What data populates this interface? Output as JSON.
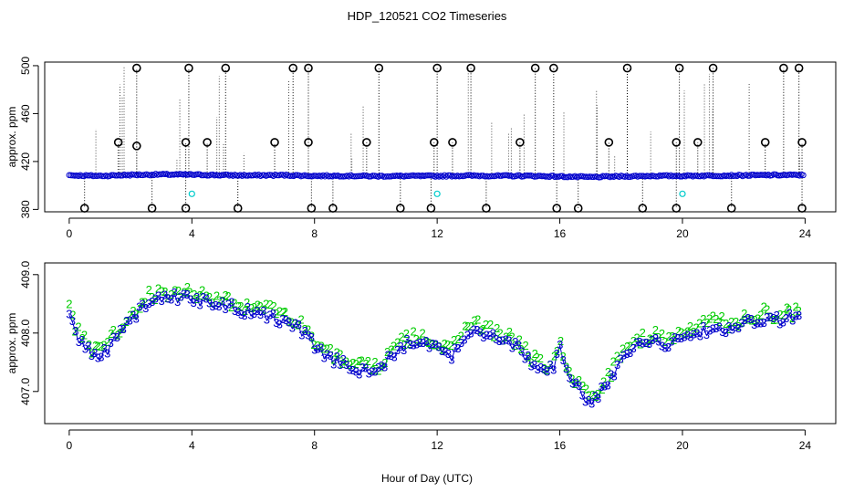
{
  "title": "HDP_120521  CO2 Timeseries",
  "xlabel": "Hour of Day (UTC)",
  "colors": {
    "flagged": "#000000",
    "main": "#0000cc",
    "cyan": "#00cccc",
    "series2": "#00cc00",
    "series3": "#0000cc",
    "axis": "#000000"
  },
  "chart_data": [
    {
      "type": "scatter",
      "ylabel": "approx. ppm",
      "xlim": [
        -0.8,
        25.0
      ],
      "ylim": [
        378,
        503
      ],
      "xticks": [
        0,
        4,
        8,
        12,
        16,
        20,
        24
      ],
      "yticks": [
        380,
        420,
        460,
        500
      ],
      "grid": false,
      "baseline": [
        [
          0,
          408.5
        ],
        [
          1,
          408.0
        ],
        [
          2,
          408.8
        ],
        [
          3,
          409.2
        ],
        [
          4,
          409.0
        ],
        [
          5,
          408.6
        ],
        [
          6,
          408.4
        ],
        [
          7,
          408.6
        ],
        [
          8,
          408.0
        ],
        [
          9,
          408.1
        ],
        [
          10,
          407.8
        ],
        [
          11,
          407.9
        ],
        [
          12,
          407.9
        ],
        [
          13,
          408.2
        ],
        [
          14,
          408.0
        ],
        [
          15,
          408.0
        ],
        [
          16,
          407.5
        ],
        [
          17,
          407.0
        ],
        [
          18,
          407.6
        ],
        [
          19,
          408.0
        ],
        [
          20,
          408.0
        ],
        [
          21,
          408.2
        ],
        [
          22,
          408.4
        ],
        [
          23,
          408.7
        ],
        [
          23.8,
          408.7
        ]
      ],
      "flagged_high": [
        [
          2.2,
          498
        ],
        [
          3.9,
          498
        ],
        [
          5.1,
          498
        ],
        [
          7.3,
          498
        ],
        [
          7.8,
          498
        ],
        [
          10.1,
          498
        ],
        [
          12.0,
          498
        ],
        [
          13.1,
          498
        ],
        [
          15.2,
          498
        ],
        [
          15.8,
          498
        ],
        [
          18.2,
          498
        ],
        [
          19.9,
          498
        ],
        [
          21.0,
          498
        ],
        [
          23.3,
          498
        ],
        [
          23.8,
          498
        ],
        [
          1.6,
          436
        ],
        [
          2.2,
          433
        ],
        [
          3.8,
          436
        ],
        [
          4.5,
          436
        ],
        [
          6.7,
          436
        ],
        [
          7.8,
          436
        ],
        [
          9.7,
          436
        ],
        [
          11.9,
          436
        ],
        [
          12.5,
          436
        ],
        [
          14.7,
          436
        ],
        [
          17.6,
          436
        ],
        [
          19.8,
          436
        ],
        [
          20.5,
          436
        ],
        [
          22.7,
          436
        ],
        [
          23.9,
          436
        ]
      ],
      "flagged_low": [
        [
          0.5,
          381
        ],
        [
          2.7,
          381
        ],
        [
          3.8,
          381
        ],
        [
          5.5,
          381
        ],
        [
          7.9,
          381
        ],
        [
          8.6,
          381
        ],
        [
          10.8,
          381
        ],
        [
          11.8,
          381
        ],
        [
          13.6,
          381
        ],
        [
          15.9,
          381
        ],
        [
          16.6,
          381
        ],
        [
          18.7,
          381
        ],
        [
          19.8,
          381
        ],
        [
          21.6,
          381
        ],
        [
          23.9,
          381
        ]
      ],
      "cyan_points": [
        [
          4.0,
          393
        ],
        [
          12.0,
          393
        ],
        [
          20.0,
          393
        ]
      ]
    },
    {
      "type": "scatter",
      "ylabel": "approx. ppm",
      "xlim": [
        -0.8,
        25.0
      ],
      "ylim": [
        406.45,
        409.2
      ],
      "xticks": [
        0,
        4,
        8,
        12,
        16,
        20,
        24
      ],
      "yticks": [
        407.0,
        408.0,
        409.0
      ],
      "ytick_labels": [
        "407.0",
        "408.0",
        "409.0"
      ],
      "grid": false,
      "series": [
        {
          "marker": "3"
        },
        {
          "marker": "2"
        }
      ],
      "curve": [
        [
          0,
          408.3
        ],
        [
          0.3,
          407.9
        ],
        [
          0.8,
          407.6
        ],
        [
          1.2,
          407.7
        ],
        [
          1.5,
          407.9
        ],
        [
          2.0,
          408.2
        ],
        [
          2.5,
          408.5
        ],
        [
          3.0,
          408.6
        ],
        [
          3.5,
          408.6
        ],
        [
          4.0,
          408.6
        ],
        [
          4.5,
          408.5
        ],
        [
          5.0,
          408.5
        ],
        [
          5.5,
          408.4
        ],
        [
          6.0,
          408.35
        ],
        [
          6.5,
          408.3
        ],
        [
          7.0,
          408.2
        ],
        [
          7.5,
          408.1
        ],
        [
          8.0,
          407.8
        ],
        [
          8.5,
          407.55
        ],
        [
          9.0,
          407.45
        ],
        [
          9.5,
          407.35
        ],
        [
          10.0,
          407.3
        ],
        [
          10.5,
          407.6
        ],
        [
          11.0,
          407.8
        ],
        [
          11.5,
          407.85
        ],
        [
          12.0,
          407.7
        ],
        [
          12.5,
          407.6
        ],
        [
          13.0,
          408.05
        ],
        [
          13.5,
          408.0
        ],
        [
          14.0,
          407.9
        ],
        [
          14.5,
          407.8
        ],
        [
          15.0,
          407.5
        ],
        [
          15.5,
          407.3
        ],
        [
          15.8,
          407.4
        ],
        [
          16.0,
          407.8
        ],
        [
          16.2,
          407.4
        ],
        [
          16.5,
          407.1
        ],
        [
          17.0,
          406.75
        ],
        [
          17.5,
          407.1
        ],
        [
          18.0,
          407.5
        ],
        [
          18.5,
          407.75
        ],
        [
          19.0,
          407.85
        ],
        [
          19.5,
          407.8
        ],
        [
          20.0,
          407.9
        ],
        [
          20.5,
          408.0
        ],
        [
          21.0,
          408.1
        ],
        [
          21.5,
          408.05
        ],
        [
          22.0,
          408.15
        ],
        [
          22.5,
          408.25
        ],
        [
          23.0,
          408.2
        ],
        [
          23.5,
          408.25
        ],
        [
          23.8,
          408.25
        ]
      ]
    }
  ]
}
